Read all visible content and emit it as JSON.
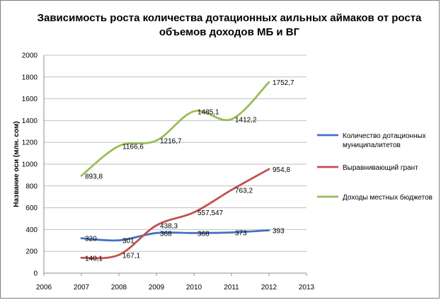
{
  "chart_data": {
    "type": "line",
    "title_lines": [
      "Зависимость роста количества дотационных аильных аймаков от роста",
      "объемов доходов МБ и ВГ"
    ],
    "ylabel": "Название оси (млн. сом)",
    "xlabel": "",
    "ylim": [
      0,
      2000
    ],
    "xlim": [
      2006,
      2013
    ],
    "y_ticks": [
      0,
      200,
      400,
      600,
      800,
      1000,
      1200,
      1400,
      1600,
      1800,
      2000
    ],
    "x_ticks": [
      2006,
      2007,
      2008,
      2009,
      2010,
      2011,
      2012,
      2013
    ],
    "x": [
      2007,
      2008,
      2009,
      2010,
      2011,
      2012
    ],
    "grid": "horizontal",
    "legend_position": "right",
    "series": [
      {
        "name": "Количество дотационных муниципалитетов",
        "legend_lines": [
          "Количество дотационных",
          "муниципалитетов"
        ],
        "color": "#4472c4",
        "values": [
          320,
          301,
          368,
          368,
          373,
          393
        ],
        "labels": [
          "320",
          "301",
          "368",
          "368",
          "373",
          "393"
        ]
      },
      {
        "name": "Выравнивающий грант",
        "legend_lines": [
          "Выравнивающий грант"
        ],
        "color": "#c0504d",
        "values": [
          140.1,
          167.1,
          438.3,
          557.547,
          763.2,
          954.8
        ],
        "labels": [
          "140,1",
          "167,1",
          "438,3",
          "557,547",
          "763,2",
          "954,8"
        ]
      },
      {
        "name": "Доходы местных бюджетов",
        "legend_lines": [
          "Доходы местных бюджетов"
        ],
        "color": "#9bbb59",
        "values": [
          893.8,
          1166.6,
          1216.7,
          1485.1,
          1412.2,
          1752.7
        ],
        "labels": [
          "893,8",
          "1166,6",
          "1216,7",
          "1485,1",
          "1412,2",
          "1752,7"
        ]
      }
    ]
  }
}
